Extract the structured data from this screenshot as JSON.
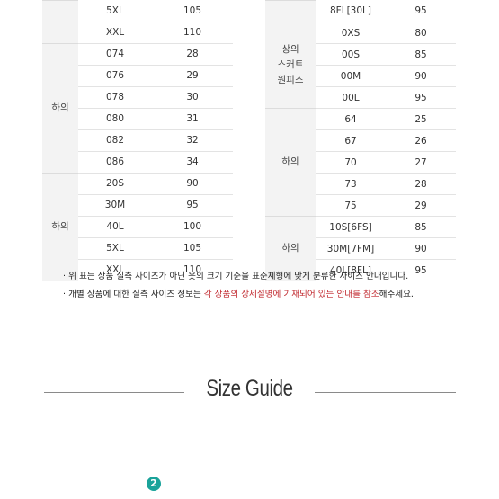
{
  "left_table": {
    "sections": [
      {
        "category": "",
        "rows": [
          [
            "5XL",
            "105"
          ],
          [
            "XXL",
            "110"
          ]
        ]
      },
      {
        "category": "하의",
        "rows": [
          [
            "074",
            "28"
          ],
          [
            "076",
            "29"
          ],
          [
            "078",
            "30"
          ],
          [
            "080",
            "31"
          ],
          [
            "082",
            "32"
          ],
          [
            "086",
            "34"
          ]
        ]
      },
      {
        "category": "하의",
        "rows": [
          [
            "20S",
            "90"
          ],
          [
            "30M",
            "95"
          ],
          [
            "40L",
            "100"
          ],
          [
            "5XL",
            "105"
          ],
          [
            "XXL",
            "110"
          ]
        ]
      }
    ]
  },
  "right_table": {
    "sections": [
      {
        "category": "",
        "rows": [
          [
            "8FL[30L]",
            "95"
          ]
        ]
      },
      {
        "category": "상의\n스커트\n원피스",
        "rows": [
          [
            "0XS",
            "80"
          ],
          [
            "00S",
            "85"
          ],
          [
            "00M",
            "90"
          ],
          [
            "00L",
            "95"
          ]
        ]
      },
      {
        "category": "하의",
        "rows": [
          [
            "64",
            "25"
          ],
          [
            "67",
            "26"
          ],
          [
            "70",
            "27"
          ],
          [
            "73",
            "28"
          ],
          [
            "75",
            "29"
          ]
        ]
      },
      {
        "category": "하의",
        "rows": [
          [
            "10S[6FS]",
            "85"
          ],
          [
            "30M[7FM]",
            "90"
          ],
          [
            "40L[8FL]",
            "95"
          ]
        ]
      }
    ]
  },
  "notes": {
    "line1": "· 위 표는 상품 실측 사이즈가 아닌 옷의 크기 기준을 표준체형에 맞게 분류한 사이즈 안내입니다.",
    "line2_before": "· 개별 상품에 대한 실측 사이즈 정보는 ",
    "line2_highlight": "각 상품의 상세설명에 기재되어 있는 안내를 참조",
    "line2_after": "해주세요."
  },
  "size_guide": {
    "title": "Size Guide"
  },
  "step_badge": {
    "number": "2"
  }
}
